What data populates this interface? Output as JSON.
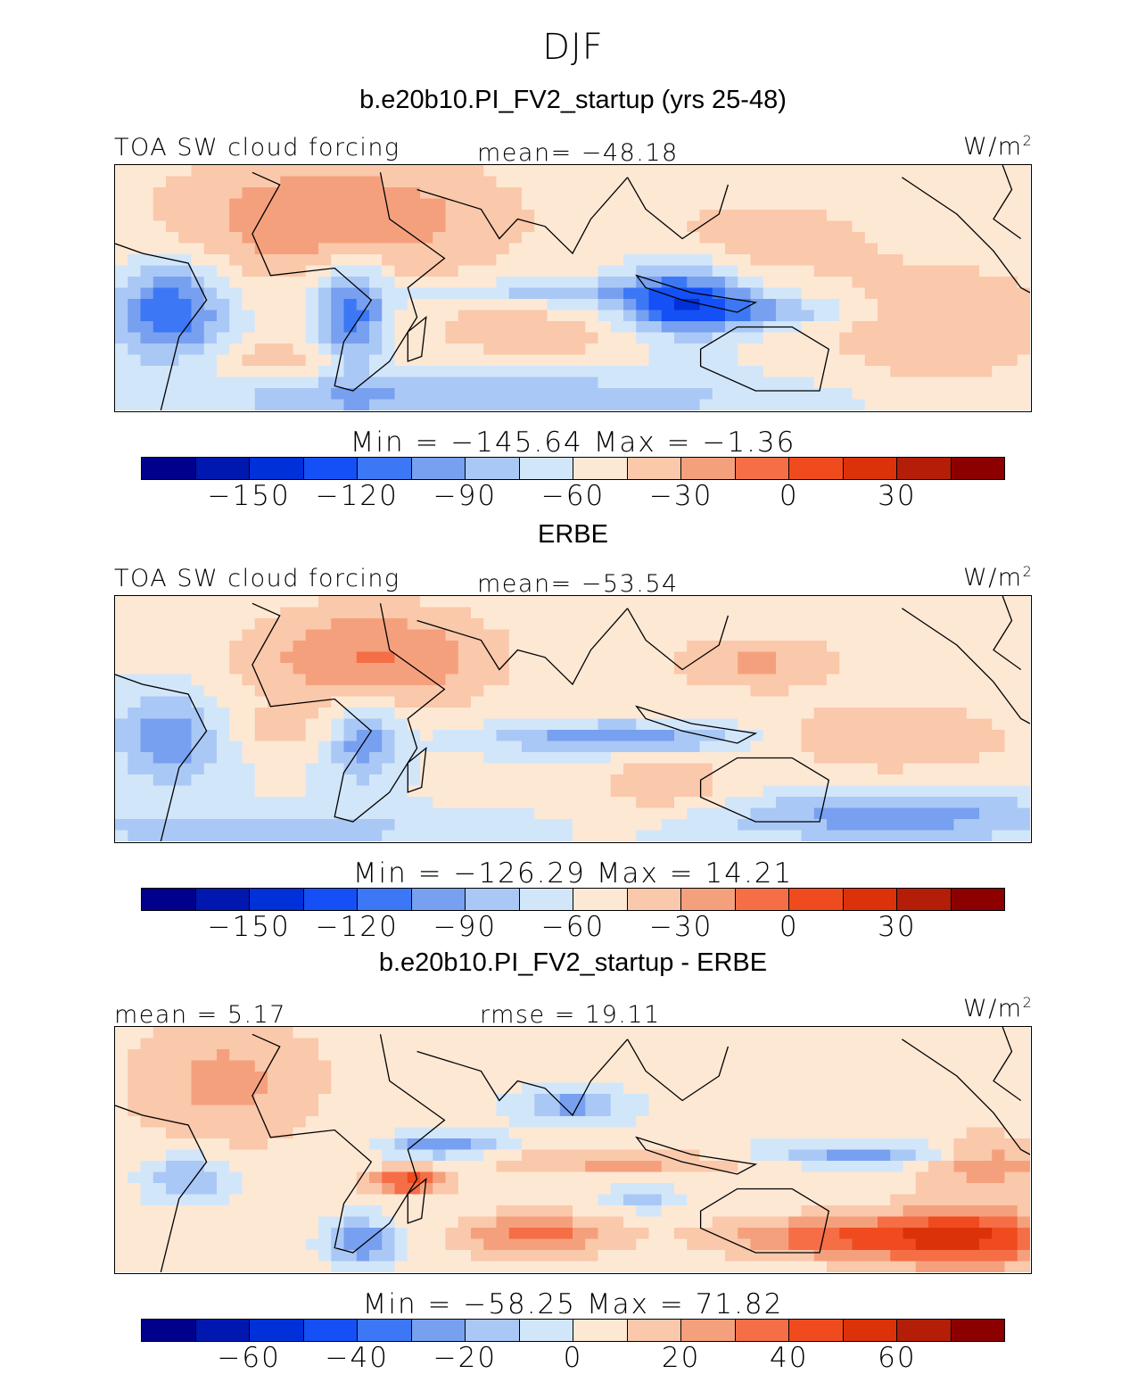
{
  "figure": {
    "title": "DJF",
    "units_text": "W/m",
    "units_sup": "2"
  },
  "chart_data": [
    {
      "type": "heatmap",
      "title": "b.e20b10.PI_FV2_startup (yrs 25-48)",
      "variable": "TOA SW cloud forcing",
      "units": "W/m2",
      "mean_label": "mean= −48.18",
      "minmax_label": "Min  =  −145.64  Max  =    −1.36",
      "min": -145.64,
      "max": -1.36,
      "mean": -48.18,
      "colorbar_ticks": [
        "−150",
        "−120",
        "−90",
        "−60",
        "−30",
        "0",
        "30"
      ],
      "colorbar_tick_values": [
        -150,
        -120,
        -90,
        -60,
        -30,
        0,
        30
      ],
      "colorbar_range": [
        -180,
        60
      ],
      "field": "model"
    },
    {
      "type": "heatmap",
      "title": "ERBE",
      "variable": "TOA SW cloud forcing",
      "units": "W/m2",
      "mean_label": "mean= −53.54",
      "minmax_label": "Min  =  −126.29  Max  =    14.21",
      "min": -126.29,
      "max": 14.21,
      "mean": -53.54,
      "colorbar_ticks": [
        "−150",
        "−120",
        "−90",
        "−60",
        "−30",
        "0",
        "30"
      ],
      "colorbar_tick_values": [
        -150,
        -120,
        -90,
        -60,
        -30,
        0,
        30
      ],
      "colorbar_range": [
        -180,
        60
      ],
      "field": "obs"
    },
    {
      "type": "heatmap",
      "title": "b.e20b10.PI_FV2_startup - ERBE",
      "units": "W/m2",
      "mean_label": "mean  =    5.17",
      "rmse_label": "rmse  =   19.11",
      "minmax_label": "Min  =  −58.25  Max  =    71.82",
      "min": -58.25,
      "max": 71.82,
      "mean": 5.17,
      "rmse": 19.11,
      "colorbar_ticks": [
        "−60",
        "−40",
        "−20",
        "0",
        "20",
        "40",
        "60"
      ],
      "colorbar_tick_values": [
        -60,
        -40,
        -20,
        0,
        20,
        40,
        60
      ],
      "colorbar_range": [
        -80,
        80
      ],
      "field": "diff"
    }
  ],
  "palette": [
    "#00008c",
    "#0018b0",
    "#0030d8",
    "#1450f5",
    "#3c78f5",
    "#78a0f0",
    "#aac8f5",
    "#d2e6fa",
    "#fde8d4",
    "#fac8aa",
    "#f5a07d",
    "#f56e46",
    "#f04b1e",
    "#dc320a",
    "#b41e08",
    "#8c0000"
  ]
}
